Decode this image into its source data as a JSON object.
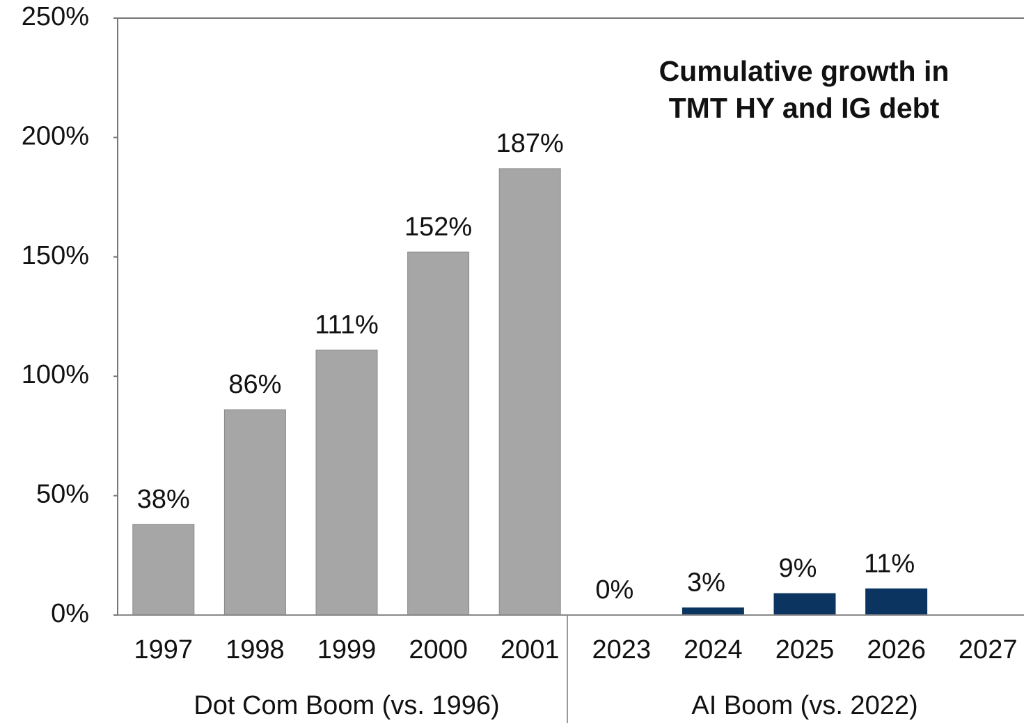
{
  "chart_data": {
    "type": "bar",
    "title": "Cumulative growth in TMT HY and IG debt",
    "groups": [
      {
        "name": "Dot Com Boom (vs. 1996)",
        "categories": [
          "1997",
          "1998",
          "1999",
          "2000",
          "2001"
        ]
      },
      {
        "name": "AI Boom (vs. 2022)",
        "categories": [
          "2023",
          "2024",
          "2025",
          "2026",
          "2027"
        ]
      }
    ],
    "values": [
      38,
      86,
      111,
      152,
      187,
      0,
      3,
      9,
      11,
      null
    ],
    "value_labels": [
      "38%",
      "86%",
      "111%",
      "152%",
      "187%",
      "0%",
      "3%",
      "9%",
      "11%",
      null
    ],
    "colors": [
      "#a6a6a6",
      "#a6a6a6",
      "#a6a6a6",
      "#a6a6a6",
      "#a6a6a6",
      "#0b3560",
      "#0b3560",
      "#0b3560",
      "#0b3560",
      "#0b3560"
    ],
    "ylim": [
      0,
      250
    ],
    "yticks": [
      {
        "value": 0,
        "label": "0%"
      },
      {
        "value": 50,
        "label": "50%"
      },
      {
        "value": 100,
        "label": "100%"
      },
      {
        "value": 150,
        "label": "150%"
      },
      {
        "value": 200,
        "label": "200%"
      },
      {
        "value": 250,
        "label": "250%"
      }
    ],
    "grid": false
  }
}
